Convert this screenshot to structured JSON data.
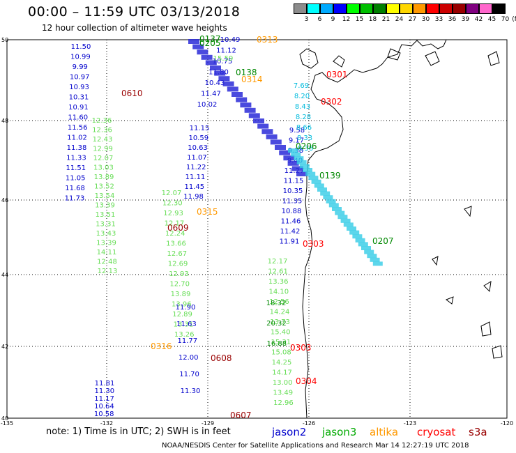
{
  "header": {
    "title": "00:00 – 11:59 UTC 03/13/2018",
    "subtitle": "12 hour collection of altimeter wave heights"
  },
  "color_scale": {
    "unit": "(ft)",
    "bins": [
      {
        "label": "3",
        "color": "#8c8c8c"
      },
      {
        "label": "6",
        "color": "#00ffff"
      },
      {
        "label": "9",
        "color": "#00aaff"
      },
      {
        "label": "12",
        "color": "#0000ff"
      },
      {
        "label": "15",
        "color": "#00ff00"
      },
      {
        "label": "18",
        "color": "#00c000"
      },
      {
        "label": "21",
        "color": "#008000"
      },
      {
        "label": "24",
        "color": "#ffff00"
      },
      {
        "label": "27",
        "color": "#ffd700"
      },
      {
        "label": "30",
        "color": "#ff9900"
      },
      {
        "label": "33",
        "color": "#ff0000"
      },
      {
        "label": "36",
        "color": "#cc0000"
      },
      {
        "label": "39",
        "color": "#990000"
      },
      {
        "label": "42",
        "color": "#800080"
      },
      {
        "label": "45",
        "color": "#ff66cc"
      },
      {
        "label": "70",
        "color": "#000000"
      }
    ]
  },
  "axes": {
    "lat_labels": [
      "50",
      "48",
      "46",
      "44",
      "42",
      "40"
    ],
    "lon_labels": [
      "-135",
      "-132",
      "-129",
      "-126",
      "-123",
      "-120"
    ]
  },
  "note": "note: 1) Time is in UTC; 2) SWH is in feet",
  "legend": [
    {
      "label": "jason2",
      "color": "#0000cc"
    },
    {
      "label": "jason3",
      "color": "#00aa00"
    },
    {
      "label": "altika",
      "color": "#ff9900"
    },
    {
      "label": "cryosat",
      "color": "#ff0000"
    },
    {
      "label": "s3a",
      "color": "#990000"
    }
  ],
  "credit": "NOAA/NESDIS Center for Satellite Applications and Research   Mar 14 12:27:19 UTC 2018",
  "colors": {
    "jason2": "#0000cc",
    "jason3_light": "#66dd55",
    "jason3_dark": "#008800",
    "altika": "#ff9900",
    "cryosat": "#ff0000",
    "s3a": "#990000",
    "cyan": "#00bbdd"
  },
  "tracks": {
    "track1": {
      "satellite": "jason2",
      "color_key": "jason2",
      "values": [
        "11.50",
        "10.99",
        "9.99",
        "10.97",
        "10.93",
        "10.31",
        "10.91",
        "11.60",
        "11.56",
        "11.02",
        "11.38",
        "11.33",
        "11.51",
        "11.05",
        "11.68",
        "11.73"
      ]
    },
    "track1_j3": {
      "color_key": "jason3_light",
      "values": [
        "12.36",
        "12.36",
        "12.43",
        "12.99",
        "12.07",
        "13.03",
        "13.89",
        "13.52",
        "13.54",
        "13.39",
        "13.51",
        "13.31",
        "13.43",
        "13.39",
        "14.11",
        "12.48",
        "12.13"
      ]
    },
    "track1_tail": {
      "color_key": "jason2",
      "values": [
        "11.81",
        "11.30",
        "11.17",
        "10.64",
        "10.58"
      ]
    },
    "track2": {
      "color_key": "jason2",
      "values": [
        "11.15",
        "10.59",
        "10.63",
        "11.07",
        "11.22",
        "11.11",
        "11.45",
        "11.98"
      ]
    },
    "track2_j3": {
      "color_key": "jason3_light",
      "values": [
        "12.07",
        "12.30",
        "12.93",
        "12.17",
        "12.24",
        "13.66",
        "12.67",
        "12.69",
        "12.93",
        "12.70",
        "13.89",
        "13.96",
        "12.89",
        "13.31",
        "13.26"
      ]
    },
    "track2_blue": {
      "color_key": "jason2",
      "values": [
        "11.90",
        "11.63",
        "11.77",
        "12.00",
        "11.70",
        "11.30"
      ]
    },
    "track3": {
      "color_key": "jason2",
      "values": [
        "9.58",
        "9.17",
        "9.38",
        "9.40",
        "11.27",
        "11.15",
        "10.35",
        "11.35",
        "10.88",
        "11.46",
        "11.42",
        "11.91"
      ]
    },
    "track3_j3": {
      "color_key": "jason3_light",
      "values": [
        "12.17",
        "12.61",
        "13.36",
        "14.10",
        "12.56",
        "14.24",
        "13.73",
        "15.40",
        "15.31",
        "15.08",
        "14.25",
        "14.17",
        "13.00",
        "13.49",
        "12.96"
      ]
    },
    "track3_dark": {
      "color_key": "jason3_dark",
      "values": [
        "18.32",
        "20.32",
        "16.88"
      ]
    },
    "track_cyan": {
      "color_key": "cyan",
      "values": [
        "7.69",
        "8.20",
        "8.43",
        "8.28",
        "8.66",
        "8.33",
        "8.36"
      ]
    },
    "track_top": {
      "color_key": "jason2",
      "values": [
        "10.49",
        "11.12",
        "10.75",
        "11.80",
        "10.43",
        "11.47",
        "10.02"
      ]
    },
    "track_top_green": {
      "color_key": "jason3_light",
      "values": [
        "15.59"
      ]
    }
  },
  "time_stamps": [
    {
      "label": "0137",
      "color_key": "jason3_dark"
    },
    {
      "label": "0205",
      "color_key": "jason3_dark"
    },
    {
      "label": "0313",
      "color_key": "altika"
    },
    {
      "label": "0301",
      "color_key": "cryosat"
    },
    {
      "label": "0138",
      "color_key": "jason3_dark"
    },
    {
      "label": "0314",
      "color_key": "altika"
    },
    {
      "label": "0610",
      "color_key": "s3a"
    },
    {
      "label": "0302",
      "color_key": "cryosat"
    },
    {
      "label": "0206",
      "color_key": "jason3_dark"
    },
    {
      "label": "0139",
      "color_key": "jason3_dark"
    },
    {
      "label": "0315",
      "color_key": "altika"
    },
    {
      "label": "0609",
      "color_key": "s3a"
    },
    {
      "label": "0303",
      "color_key": "cryosat"
    },
    {
      "label": "0207",
      "color_key": "jason3_dark"
    },
    {
      "label": "0316",
      "color_key": "altika"
    },
    {
      "label": "0303",
      "color_key": "cryosat"
    },
    {
      "label": "0608",
      "color_key": "s3a"
    },
    {
      "label": "0304",
      "color_key": "cryosat"
    },
    {
      "label": "0607",
      "color_key": "s3a"
    }
  ]
}
